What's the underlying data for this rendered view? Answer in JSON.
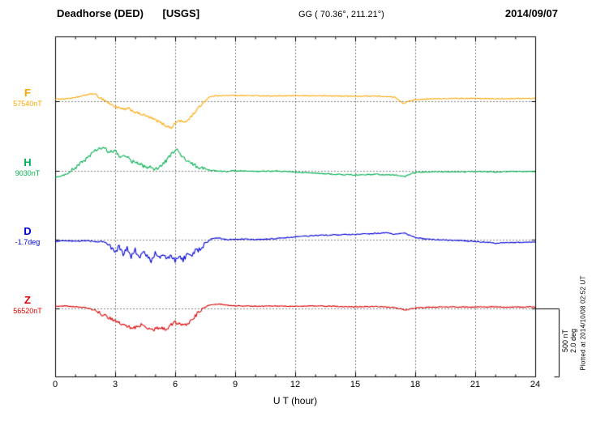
{
  "header": {
    "station": "Deadhorse (DED)",
    "agency": "[USGS]",
    "coords": "GG ( 70.36°, 211.21°)",
    "date": "2014/09/07"
  },
  "footer": {
    "plotted_at": "Plotted at 2014/10/08 02:52 UT"
  },
  "scale_bar": {
    "line1": "500 nT",
    "line2": "2.0 deg"
  },
  "chart_data": {
    "type": "line",
    "title": "Deadhorse (DED) [USGS] magnetogram",
    "xlabel": "U T (hour)",
    "x_range": [
      0,
      24
    ],
    "x_ticks": [
      0,
      3,
      6,
      9,
      12,
      15,
      18,
      21,
      24
    ],
    "x_minor_tick_hours": 1,
    "grid": "dotted vertical gridlines every 3 h, dotted horizontal baseline per trace",
    "panel_scale_nT": 500,
    "panel_scale_deg": 2.0,
    "series": [
      {
        "name": "F",
        "unit": "nT",
        "color": "#ffa500",
        "baseline_value": 57540,
        "reference_label": "57540nT",
        "values_are": "offset from baseline_value in nT",
        "noise": 3,
        "active_window": [
          2,
          7.5
        ],
        "active_noise": 9,
        "keypoints": [
          [
            0,
            15
          ],
          [
            0.5,
            18
          ],
          [
            1,
            25
          ],
          [
            1.5,
            45
          ],
          [
            1.9,
            55
          ],
          [
            2.2,
            30
          ],
          [
            2.5,
            5
          ],
          [
            2.8,
            -25
          ],
          [
            3.1,
            -45
          ],
          [
            3.4,
            -60
          ],
          [
            3.7,
            -55
          ],
          [
            4,
            -80
          ],
          [
            4.3,
            -95
          ],
          [
            4.6,
            -110
          ],
          [
            4.9,
            -130
          ],
          [
            5.2,
            -150
          ],
          [
            5.5,
            -175
          ],
          [
            5.8,
            -195
          ],
          [
            6,
            -160
          ],
          [
            6.2,
            -140
          ],
          [
            6.5,
            -155
          ],
          [
            6.8,
            -110
          ],
          [
            7.1,
            -60
          ],
          [
            7.4,
            -10
          ],
          [
            7.7,
            30
          ],
          [
            8,
            40
          ],
          [
            9,
            42
          ],
          [
            10,
            40
          ],
          [
            11,
            38
          ],
          [
            12,
            40
          ],
          [
            13,
            40
          ],
          [
            14,
            38
          ],
          [
            15,
            36
          ],
          [
            16,
            38
          ],
          [
            17,
            28
          ],
          [
            17.4,
            -15
          ],
          [
            17.7,
            0
          ],
          [
            18,
            12
          ],
          [
            19,
            18
          ],
          [
            20,
            20
          ],
          [
            21,
            20
          ],
          [
            22,
            18
          ],
          [
            23,
            20
          ],
          [
            24,
            20
          ]
        ]
      },
      {
        "name": "H",
        "unit": "nT",
        "color": "#00b050",
        "baseline_value": 9030,
        "reference_label": "9030nT",
        "values_are": "offset from baseline_value in nT",
        "noise": 4,
        "active_window": [
          0.8,
          7.5
        ],
        "active_noise": 14,
        "keypoints": [
          [
            0,
            -45
          ],
          [
            0.3,
            -40
          ],
          [
            0.6,
            -20
          ],
          [
            1,
            20
          ],
          [
            1.4,
            70
          ],
          [
            1.8,
            120
          ],
          [
            2.1,
            155
          ],
          [
            2.4,
            170
          ],
          [
            2.7,
            130
          ],
          [
            3,
            150
          ],
          [
            3.2,
            100
          ],
          [
            3.5,
            115
          ],
          [
            3.8,
            70
          ],
          [
            4.1,
            55
          ],
          [
            4.4,
            35
          ],
          [
            4.7,
            25
          ],
          [
            5,
            15
          ],
          [
            5.3,
            35
          ],
          [
            5.6,
            80
          ],
          [
            5.9,
            140
          ],
          [
            6.1,
            150
          ],
          [
            6.3,
            110
          ],
          [
            6.6,
            70
          ],
          [
            6.9,
            45
          ],
          [
            7.2,
            25
          ],
          [
            7.5,
            10
          ],
          [
            8,
            0
          ],
          [
            8.5,
            -5
          ],
          [
            9,
            0
          ],
          [
            10,
            -5
          ],
          [
            11,
            -2
          ],
          [
            12,
            -8
          ],
          [
            13,
            -18
          ],
          [
            14,
            -25
          ],
          [
            15,
            -30
          ],
          [
            16,
            -25
          ],
          [
            17,
            -30
          ],
          [
            17.5,
            -42
          ],
          [
            17.8,
            -20
          ],
          [
            18.2,
            -10
          ],
          [
            19,
            -5
          ],
          [
            20,
            -8
          ],
          [
            21,
            -5
          ],
          [
            22,
            -8
          ],
          [
            23,
            -5
          ],
          [
            24,
            -5
          ]
        ]
      },
      {
        "name": "D",
        "unit": "deg",
        "color": "#0000dd",
        "baseline_value": -1.7,
        "reference_label": "-1.7deg",
        "values_are": "offset from baseline_value in degrees",
        "noise": 0.015,
        "active_window": [
          2.6,
          7.6
        ],
        "active_noise": 0.07,
        "keypoints": [
          [
            0,
            -0.05
          ],
          [
            0.5,
            -0.04
          ],
          [
            1,
            -0.05
          ],
          [
            1.5,
            -0.03
          ],
          [
            2,
            -0.06
          ],
          [
            2.4,
            -0.05
          ],
          [
            2.7,
            -0.15
          ],
          [
            3,
            -0.38
          ],
          [
            3.2,
            -0.2
          ],
          [
            3.4,
            -0.45
          ],
          [
            3.6,
            -0.25
          ],
          [
            3.8,
            -0.52
          ],
          [
            4,
            -0.3
          ],
          [
            4.2,
            -0.55
          ],
          [
            4.4,
            -0.35
          ],
          [
            4.6,
            -0.5
          ],
          [
            4.8,
            -0.6
          ],
          [
            5,
            -0.38
          ],
          [
            5.2,
            -0.55
          ],
          [
            5.4,
            -0.42
          ],
          [
            5.6,
            -0.58
          ],
          [
            5.8,
            -0.45
          ],
          [
            6,
            -0.62
          ],
          [
            6.2,
            -0.48
          ],
          [
            6.4,
            -0.58
          ],
          [
            6.6,
            -0.42
          ],
          [
            6.8,
            -0.5
          ],
          [
            7,
            -0.35
          ],
          [
            7.2,
            -0.28
          ],
          [
            7.5,
            -0.12
          ],
          [
            7.8,
            0.02
          ],
          [
            8.2,
            0.05
          ],
          [
            8.6,
            0
          ],
          [
            9,
            0.02
          ],
          [
            10,
            0
          ],
          [
            11,
            0.03
          ],
          [
            12,
            0.08
          ],
          [
            13,
            0.12
          ],
          [
            14,
            0.14
          ],
          [
            15,
            0.15
          ],
          [
            16,
            0.18
          ],
          [
            16.5,
            0.2
          ],
          [
            17,
            0.16
          ],
          [
            17.5,
            0.18
          ],
          [
            18,
            0.06
          ],
          [
            18.5,
            0.02
          ],
          [
            19,
            0
          ],
          [
            20,
            -0.02
          ],
          [
            21,
            -0.05
          ],
          [
            22,
            -0.1
          ],
          [
            23,
            -0.08
          ],
          [
            24,
            -0.06
          ]
        ]
      },
      {
        "name": "Z",
        "unit": "nT",
        "color": "#dd0000",
        "baseline_value": 56520,
        "reference_label": "56520nT",
        "values_are": "offset from baseline_value in nT",
        "noise": 3,
        "active_window": [
          2,
          7.4
        ],
        "active_noise": 12,
        "keypoints": [
          [
            0,
            15
          ],
          [
            0.5,
            18
          ],
          [
            1,
            12
          ],
          [
            1.5,
            8
          ],
          [
            2,
            -15
          ],
          [
            2.5,
            -55
          ],
          [
            2.8,
            -75
          ],
          [
            3.1,
            -95
          ],
          [
            3.4,
            -120
          ],
          [
            3.7,
            -135
          ],
          [
            4,
            -140
          ],
          [
            4.3,
            -120
          ],
          [
            4.6,
            -148
          ],
          [
            4.9,
            -155
          ],
          [
            5.2,
            -140
          ],
          [
            5.5,
            -150
          ],
          [
            5.8,
            -120
          ],
          [
            6,
            -100
          ],
          [
            6.3,
            -112
          ],
          [
            6.6,
            -120
          ],
          [
            6.9,
            -70
          ],
          [
            7.2,
            -25
          ],
          [
            7.5,
            10
          ],
          [
            7.8,
            28
          ],
          [
            8.2,
            32
          ],
          [
            8.6,
            25
          ],
          [
            9,
            20
          ],
          [
            10,
            16
          ],
          [
            11,
            18
          ],
          [
            12,
            15
          ],
          [
            13,
            18
          ],
          [
            14,
            15
          ],
          [
            15,
            12
          ],
          [
            16,
            15
          ],
          [
            17,
            6
          ],
          [
            17.5,
            -12
          ],
          [
            18,
            4
          ],
          [
            19,
            10
          ],
          [
            20,
            12
          ],
          [
            21,
            10
          ],
          [
            22,
            12
          ],
          [
            23,
            10
          ],
          [
            24,
            12
          ]
        ]
      }
    ]
  }
}
